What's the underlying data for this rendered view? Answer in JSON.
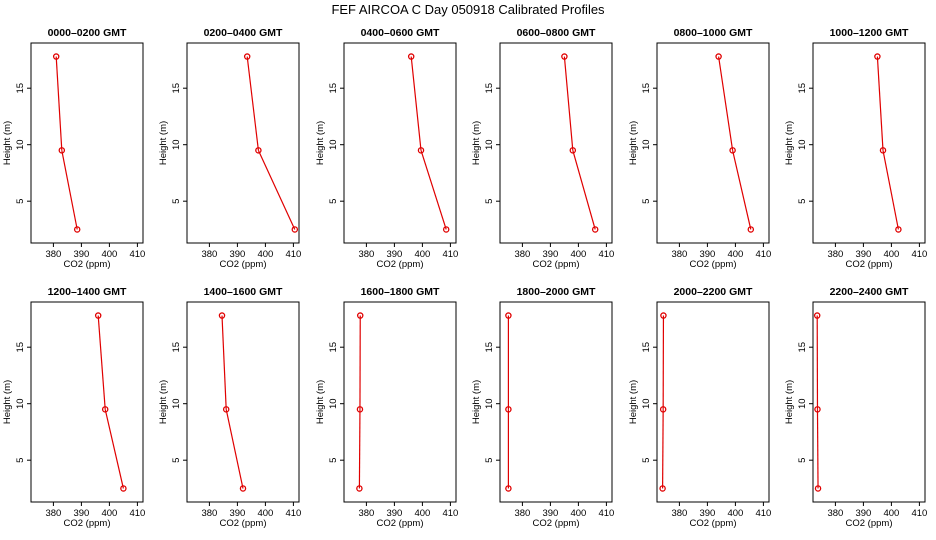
{
  "figure": {
    "title": "FEF AIRCOA C  Day 050918  Calibrated Profiles"
  },
  "colors": {
    "profile": "#e00000",
    "axes": "#000000"
  },
  "chart_data": [
    {
      "type": "line",
      "title": "0000–0200 GMT",
      "xlabel": "CO2 (ppm)",
      "ylabel": "Height (m)",
      "xlim": [
        372,
        412
      ],
      "ylim": [
        1.3,
        19.0
      ],
      "xticks": [
        380,
        390,
        400,
        410
      ],
      "yticks": [
        5,
        10,
        15
      ],
      "x": [
        388.5,
        383.0,
        381.0
      ],
      "y": [
        2.5,
        9.5,
        17.8
      ]
    },
    {
      "type": "line",
      "title": "0200–0400 GMT",
      "xlabel": "CO2 (ppm)",
      "ylabel": "Height (m)",
      "xlim": [
        372,
        412
      ],
      "ylim": [
        1.3,
        19.0
      ],
      "xticks": [
        380,
        390,
        400,
        410
      ],
      "yticks": [
        5,
        10,
        15
      ],
      "x": [
        410.5,
        397.5,
        393.5
      ],
      "y": [
        2.5,
        9.5,
        17.8
      ]
    },
    {
      "type": "line",
      "title": "0400–0600 GMT",
      "xlabel": "CO2 (ppm)",
      "ylabel": "Height (m)",
      "xlim": [
        372,
        412
      ],
      "ylim": [
        1.3,
        19.0
      ],
      "xticks": [
        380,
        390,
        400,
        410
      ],
      "yticks": [
        5,
        10,
        15
      ],
      "x": [
        408.5,
        399.5,
        396.0
      ],
      "y": [
        2.5,
        9.5,
        17.8
      ]
    },
    {
      "type": "line",
      "title": "0600–0800 GMT",
      "xlabel": "CO2 (ppm)",
      "ylabel": "Height (m)",
      "xlim": [
        372,
        412
      ],
      "ylim": [
        1.3,
        19.0
      ],
      "xticks": [
        380,
        390,
        400,
        410
      ],
      "yticks": [
        5,
        10,
        15
      ],
      "x": [
        406.0,
        398.0,
        395.0
      ],
      "y": [
        2.5,
        9.5,
        17.8
      ]
    },
    {
      "type": "line",
      "title": "0800–1000 GMT",
      "xlabel": "CO2 (ppm)",
      "ylabel": "Height (m)",
      "xlim": [
        372,
        412
      ],
      "ylim": [
        1.3,
        19.0
      ],
      "xticks": [
        380,
        390,
        400,
        410
      ],
      "yticks": [
        5,
        10,
        15
      ],
      "x": [
        405.5,
        399.0,
        394.0
      ],
      "y": [
        2.5,
        9.5,
        17.8
      ]
    },
    {
      "type": "line",
      "title": "1000–1200 GMT",
      "xlabel": "CO2 (ppm)",
      "ylabel": "Height (m)",
      "xlim": [
        372,
        412
      ],
      "ylim": [
        1.3,
        19.0
      ],
      "xticks": [
        380,
        390,
        400,
        410
      ],
      "yticks": [
        5,
        10,
        15
      ],
      "x": [
        402.5,
        397.0,
        395.0
      ],
      "y": [
        2.5,
        9.5,
        17.8
      ]
    },
    {
      "type": "line",
      "title": "1200–1400 GMT",
      "xlabel": "CO2 (ppm)",
      "ylabel": "Height (m)",
      "xlim": [
        372,
        412
      ],
      "ylim": [
        1.3,
        19.0
      ],
      "xticks": [
        380,
        390,
        400,
        410
      ],
      "yticks": [
        5,
        10,
        15
      ],
      "x": [
        405.0,
        398.5,
        396.0
      ],
      "y": [
        2.5,
        9.5,
        17.8
      ]
    },
    {
      "type": "line",
      "title": "1400–1600 GMT",
      "xlabel": "CO2 (ppm)",
      "ylabel": "Height (m)",
      "xlim": [
        372,
        412
      ],
      "ylim": [
        1.3,
        19.0
      ],
      "xticks": [
        380,
        390,
        400,
        410
      ],
      "yticks": [
        5,
        10,
        15
      ],
      "x": [
        392.0,
        386.0,
        384.5
      ],
      "y": [
        2.5,
        9.5,
        17.8
      ]
    },
    {
      "type": "line",
      "title": "1600–1800 GMT",
      "xlabel": "CO2 (ppm)",
      "ylabel": "Height (m)",
      "xlim": [
        372,
        412
      ],
      "ylim": [
        1.3,
        19.0
      ],
      "xticks": [
        380,
        390,
        400,
        410
      ],
      "yticks": [
        5,
        10,
        15
      ],
      "x": [
        377.5,
        377.7,
        377.8
      ],
      "y": [
        2.5,
        9.5,
        17.8
      ]
    },
    {
      "type": "line",
      "title": "1800–2000 GMT",
      "xlabel": "CO2 (ppm)",
      "ylabel": "Height (m)",
      "xlim": [
        372,
        412
      ],
      "ylim": [
        1.3,
        19.0
      ],
      "xticks": [
        380,
        390,
        400,
        410
      ],
      "yticks": [
        5,
        10,
        15
      ],
      "x": [
        375.0,
        375.0,
        375.0
      ],
      "y": [
        2.5,
        9.5,
        17.8
      ]
    },
    {
      "type": "line",
      "title": "2000–2200 GMT",
      "xlabel": "CO2 (ppm)",
      "ylabel": "Height (m)",
      "xlim": [
        372,
        412
      ],
      "ylim": [
        1.3,
        19.0
      ],
      "xticks": [
        380,
        390,
        400,
        410
      ],
      "yticks": [
        5,
        10,
        15
      ],
      "x": [
        374.0,
        374.2,
        374.3
      ],
      "y": [
        2.5,
        9.5,
        17.8
      ]
    },
    {
      "type": "line",
      "title": "2200–2400 GMT",
      "xlabel": "CO2 (ppm)",
      "ylabel": "Height (m)",
      "xlim": [
        372,
        412
      ],
      "ylim": [
        1.3,
        19.0
      ],
      "xticks": [
        380,
        390,
        400,
        410
      ],
      "yticks": [
        5,
        10,
        15
      ],
      "x": [
        373.8,
        373.6,
        373.5
      ],
      "y": [
        2.5,
        9.5,
        17.8
      ]
    }
  ]
}
